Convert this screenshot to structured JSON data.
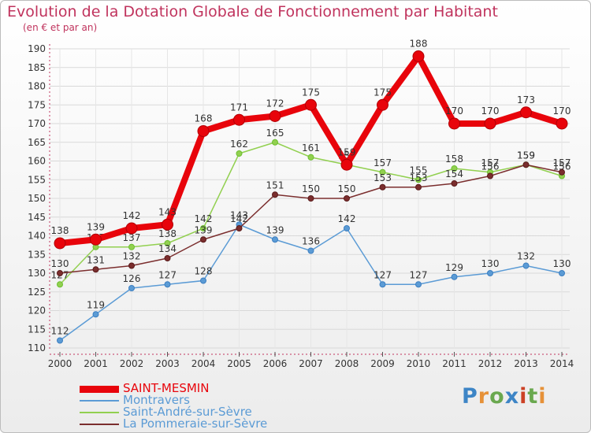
{
  "title": "Evolution de la Dotation Globale de Fonctionnement par Habitant",
  "subtitle": "(en € et par an)",
  "brand": "Proxiti",
  "chart_data": {
    "type": "line",
    "title": "Evolution de la Dotation Globale de Fonctionnement par Habitant",
    "ylabel": "(en € et par an)",
    "xlabel": "",
    "ylim": [
      110,
      190
    ],
    "yticks": [
      110,
      115,
      120,
      125,
      130,
      135,
      140,
      145,
      150,
      155,
      160,
      165,
      170,
      175,
      180,
      185,
      190
    ],
    "categories": [
      "2000",
      "2001",
      "2002",
      "2003",
      "2004",
      "2005",
      "2006",
      "2007",
      "2008",
      "2009",
      "2010",
      "2011",
      "2012",
      "2013",
      "2014"
    ],
    "series": [
      {
        "name": "SAINT-MESMIN",
        "color": "#e8040b",
        "bold": true,
        "values": [
          138,
          139,
          142,
          143,
          168,
          171,
          172,
          175,
          159,
          175,
          188,
          170,
          170,
          173,
          170
        ]
      },
      {
        "name": "Montravers",
        "color": "#5b9bd5",
        "marker": "#3d7fc1",
        "values": [
          112,
          119,
          126,
          127,
          128,
          143,
          139,
          136,
          142,
          127,
          127,
          129,
          130,
          132,
          130
        ]
      },
      {
        "name": "Saint-André-sur-Sèvre",
        "color": "#92d050",
        "marker": "#6cbf2f",
        "values": [
          127,
          137,
          137,
          138,
          142,
          162,
          165,
          161,
          159,
          157,
          155,
          158,
          157,
          159,
          156
        ]
      },
      {
        "name": "La Pommeraie-sur-Sèvre",
        "color": "#7b2e2e",
        "marker": "#5a1a1a",
        "values": [
          130,
          131,
          132,
          134,
          139,
          142,
          151,
          150,
          150,
          153,
          153,
          154,
          156,
          159,
          157
        ]
      }
    ]
  }
}
